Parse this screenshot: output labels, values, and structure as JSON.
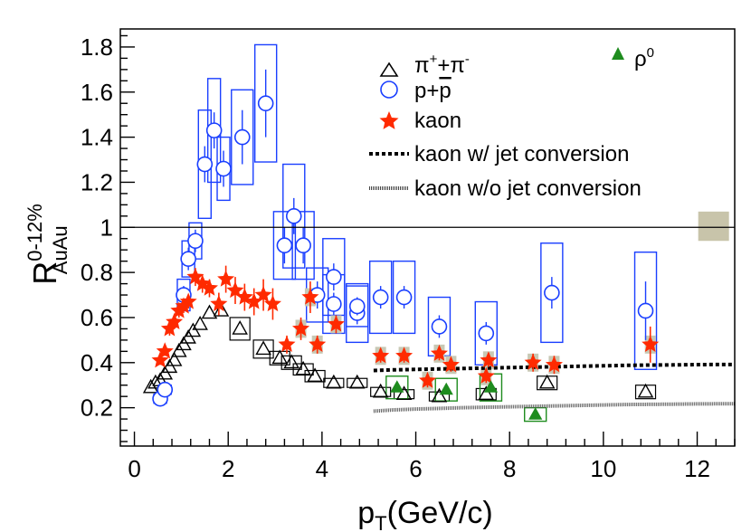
{
  "chart_data": {
    "type": "scatter",
    "title": "",
    "xlabel": "p_T(GeV/c)",
    "xlabel_main": "p",
    "xlabel_sub": "T",
    "xlabel_rest": "(GeV/c)",
    "ylabel": "R_AuAu^0-12%",
    "ylabel_main": "R",
    "ylabel_sup": "0-12%",
    "ylabel_sub": "AuAu",
    "xlim": [
      -0.3,
      12.8
    ],
    "ylim": [
      0.03,
      1.88
    ],
    "x_ticks": [
      0,
      2,
      4,
      6,
      8,
      10,
      12
    ],
    "x_tick_labels": [
      "0",
      "2",
      "4",
      "6",
      "8",
      "10",
      "12"
    ],
    "y_ticks": [
      0.2,
      0.4,
      0.6,
      0.8,
      1.0,
      1.2,
      1.4,
      1.6,
      1.8
    ],
    "y_tick_labels": [
      "0.2",
      "0.4",
      "0.6",
      "0.8",
      "1",
      "1.2",
      "1.4",
      "1.6",
      "1.8"
    ],
    "reference_line": 1.0,
    "norm_uncertainty": {
      "x": 12.35,
      "low": 0.94,
      "high": 1.07
    },
    "colors": {
      "pion": "#000000",
      "proton": "#1a3fff",
      "kaon": "#ff2a00",
      "rho": "#1e8c1e",
      "kaon_syst": "#c8c8b4",
      "norm_box": "#c8c4aa"
    },
    "legend": {
      "pion": {
        "text": "π",
        "sup": "+",
        "mid": "+π",
        "sup2": "-"
      },
      "proton": {
        "text": "p+",
        "bar": "p"
      },
      "kaon": "kaon",
      "kaon_jet": "kaon w/ jet conversion",
      "kaon_nojet": "kaon w/o jet conversion",
      "rho": {
        "text": "ρ",
        "sup": "0"
      }
    },
    "series": [
      {
        "name": "pi+ + pi-",
        "marker": "open-triangle",
        "points": [
          {
            "x": 0.35,
            "y": 0.29,
            "sys": 0.015
          },
          {
            "x": 0.45,
            "y": 0.31,
            "sys": 0.015
          },
          {
            "x": 0.55,
            "y": 0.32,
            "sys": 0.015
          },
          {
            "x": 0.65,
            "y": 0.35,
            "sys": 0.015
          },
          {
            "x": 0.75,
            "y": 0.38,
            "sys": 0.02
          },
          {
            "x": 0.85,
            "y": 0.41,
            "sys": 0.02
          },
          {
            "x": 0.95,
            "y": 0.45,
            "sys": 0.02
          },
          {
            "x": 1.05,
            "y": 0.48,
            "sys": 0.02
          },
          {
            "x": 1.15,
            "y": 0.51,
            "sys": 0.02
          },
          {
            "x": 1.25,
            "y": 0.54,
            "sys": 0.025
          },
          {
            "x": 1.4,
            "y": 0.57,
            "sys": 0.03
          },
          {
            "x": 1.6,
            "y": 0.62,
            "sys": 0.04
          },
          {
            "x": 1.85,
            "y": 0.63,
            "sys": 0.05
          },
          {
            "x": 2.25,
            "y": 0.55,
            "sys": 0.05
          },
          {
            "x": 2.75,
            "y": 0.46,
            "sys": 0.04
          },
          {
            "x": 3.1,
            "y": 0.42,
            "sys": 0.03
          },
          {
            "x": 3.35,
            "y": 0.4,
            "sys": 0.03
          },
          {
            "x": 3.6,
            "y": 0.37,
            "sys": 0.025
          },
          {
            "x": 3.85,
            "y": 0.34,
            "sys": 0.025
          },
          {
            "x": 4.25,
            "y": 0.31,
            "sys": 0.02
          },
          {
            "x": 4.75,
            "y": 0.31,
            "sys": 0.02
          },
          {
            "x": 5.25,
            "y": 0.27,
            "sys": 0.02
          },
          {
            "x": 5.75,
            "y": 0.26,
            "sys": 0.02
          },
          {
            "x": 6.5,
            "y": 0.25,
            "sys": 0.02
          },
          {
            "x": 7.5,
            "y": 0.26,
            "sys": 0.025
          },
          {
            "x": 8.8,
            "y": 0.31,
            "sys": 0.03
          },
          {
            "x": 10.9,
            "y": 0.27,
            "sys": 0.03
          }
        ]
      },
      {
        "name": "p + pbar",
        "marker": "open-circle",
        "points": [
          {
            "x": 0.55,
            "y": 0.24,
            "err": 0.02,
            "sys": 0.02
          },
          {
            "x": 0.65,
            "y": 0.28,
            "err": 0.02,
            "sys": 0.02
          },
          {
            "x": 1.05,
            "y": 0.7,
            "err": 0.04,
            "sys": 0.07
          },
          {
            "x": 1.15,
            "y": 0.86,
            "err": 0.05,
            "sys": 0.08
          },
          {
            "x": 1.3,
            "y": 0.94,
            "err": 0.05,
            "sys": 0.08
          },
          {
            "x": 1.5,
            "y": 1.28,
            "err": 0.08,
            "sys": 0.24
          },
          {
            "x": 1.7,
            "y": 1.43,
            "err": 0.08,
            "sys": 0.23
          },
          {
            "x": 1.9,
            "y": 1.26,
            "err": 0.08,
            "sys": 0.14
          },
          {
            "x": 2.3,
            "y": 1.4,
            "err": 0.12,
            "sys": 0.21
          },
          {
            "x": 2.8,
            "y": 1.55,
            "err": 0.15,
            "sys": 0.26
          },
          {
            "x": 3.2,
            "y": 0.92,
            "err": 0.08,
            "sys": 0.15
          },
          {
            "x": 3.4,
            "y": 1.05,
            "err": 0.08,
            "sys": 0.23
          },
          {
            "x": 3.6,
            "y": 0.92,
            "err": 0.08,
            "sys": 0.15
          },
          {
            "x": 3.9,
            "y": 0.7,
            "err": 0.06,
            "sys": 0.12
          },
          {
            "x": 4.25,
            "y": 0.78,
            "err": 0.06,
            "sys": 0.17
          },
          {
            "x": 4.25,
            "y": 0.66,
            "err": 0.05,
            "sys": 0.13
          },
          {
            "x": 4.75,
            "y": 0.62,
            "err": 0.05,
            "sys": 0.13
          },
          {
            "x": 4.75,
            "y": 0.65,
            "err": 0.04,
            "sys": 0.09
          },
          {
            "x": 5.25,
            "y": 0.69,
            "err": 0.05,
            "sys": 0.16
          },
          {
            "x": 5.75,
            "y": 0.69,
            "err": 0.05,
            "sys": 0.16
          },
          {
            "x": 6.5,
            "y": 0.56,
            "err": 0.05,
            "sys": 0.13
          },
          {
            "x": 7.5,
            "y": 0.53,
            "err": 0.05,
            "sys": 0.14
          },
          {
            "x": 8.9,
            "y": 0.71,
            "err": 0.07,
            "sys": 0.22
          },
          {
            "x": 10.9,
            "y": 0.63,
            "err": 0.13,
            "sys": 0.26
          }
        ]
      },
      {
        "name": "kaon",
        "marker": "filled-star",
        "points": [
          {
            "x": 0.55,
            "y": 0.41,
            "err": 0.02
          },
          {
            "x": 0.65,
            "y": 0.45,
            "err": 0.02
          },
          {
            "x": 0.75,
            "y": 0.55,
            "err": 0.03
          },
          {
            "x": 0.85,
            "y": 0.58,
            "err": 0.03
          },
          {
            "x": 0.95,
            "y": 0.63,
            "err": 0.03
          },
          {
            "x": 1.05,
            "y": 0.65,
            "err": 0.03
          },
          {
            "x": 1.15,
            "y": 0.67,
            "err": 0.03
          },
          {
            "x": 1.3,
            "y": 0.78,
            "err": 0.04
          },
          {
            "x": 1.45,
            "y": 0.75,
            "err": 0.04
          },
          {
            "x": 1.6,
            "y": 0.73,
            "err": 0.04
          },
          {
            "x": 1.8,
            "y": 0.66,
            "err": 0.05
          },
          {
            "x": 1.95,
            "y": 0.77,
            "err": 0.06
          },
          {
            "x": 2.15,
            "y": 0.72,
            "err": 0.06
          },
          {
            "x": 2.35,
            "y": 0.69,
            "err": 0.06
          },
          {
            "x": 2.55,
            "y": 0.67,
            "err": 0.06
          },
          {
            "x": 2.75,
            "y": 0.7,
            "err": 0.07
          },
          {
            "x": 2.95,
            "y": 0.66,
            "err": 0.07
          },
          {
            "x": 3.25,
            "y": 0.48,
            "err": 0.04
          },
          {
            "x": 3.55,
            "y": 0.55,
            "err": 0.05
          },
          {
            "x": 3.75,
            "y": 0.69,
            "err": 0.07
          },
          {
            "x": 3.9,
            "y": 0.48,
            "err": 0.04
          },
          {
            "x": 4.3,
            "y": 0.57,
            "err": 0.04
          },
          {
            "x": 5.25,
            "y": 0.43,
            "err": 0.03
          },
          {
            "x": 5.75,
            "y": 0.43,
            "err": 0.03
          },
          {
            "x": 6.25,
            "y": 0.32,
            "err": 0.03
          },
          {
            "x": 6.5,
            "y": 0.44,
            "err": 0.03
          },
          {
            "x": 6.75,
            "y": 0.39,
            "err": 0.03
          },
          {
            "x": 7.5,
            "y": 0.34,
            "err": 0.03
          },
          {
            "x": 7.55,
            "y": 0.41,
            "err": 0.03
          },
          {
            "x": 8.5,
            "y": 0.4,
            "err": 0.04
          },
          {
            "x": 8.95,
            "y": 0.39,
            "err": 0.04
          },
          {
            "x": 11.0,
            "y": 0.48,
            "err": 0.08
          }
        ]
      },
      {
        "name": "rho0",
        "marker": "filled-triangle",
        "points": [
          {
            "x": 5.6,
            "y": 0.29,
            "sys": 0.05
          },
          {
            "x": 6.65,
            "y": 0.28,
            "sys": 0.05
          },
          {
            "x": 7.6,
            "y": 0.29,
            "sys": 0.06
          },
          {
            "x": 8.55,
            "y": 0.17,
            "sys": 0.03
          }
        ]
      },
      {
        "name": "kaon w/ jet conversion",
        "style": "dashed-thick",
        "x": [
          5.1,
          5.5,
          6.0,
          6.5,
          7.0,
          7.5,
          8.0,
          8.5,
          9.0,
          9.5,
          10.0,
          10.5,
          11.0,
          11.5,
          12.0,
          12.8
        ],
        "y": [
          0.365,
          0.368,
          0.37,
          0.372,
          0.374,
          0.376,
          0.378,
          0.38,
          0.382,
          0.384,
          0.386,
          0.388,
          0.389,
          0.39,
          0.391,
          0.392
        ]
      },
      {
        "name": "kaon w/o jet conversion",
        "style": "dotted-fine",
        "x": [
          5.1,
          5.5,
          6.0,
          6.5,
          7.0,
          7.5,
          8.0,
          8.5,
          9.0,
          9.5,
          10.0,
          10.5,
          11.0,
          11.5,
          12.0,
          12.8
        ],
        "y": [
          0.185,
          0.19,
          0.194,
          0.197,
          0.2,
          0.202,
          0.204,
          0.206,
          0.208,
          0.21,
          0.212,
          0.214,
          0.215,
          0.216,
          0.217,
          0.218
        ]
      }
    ]
  }
}
